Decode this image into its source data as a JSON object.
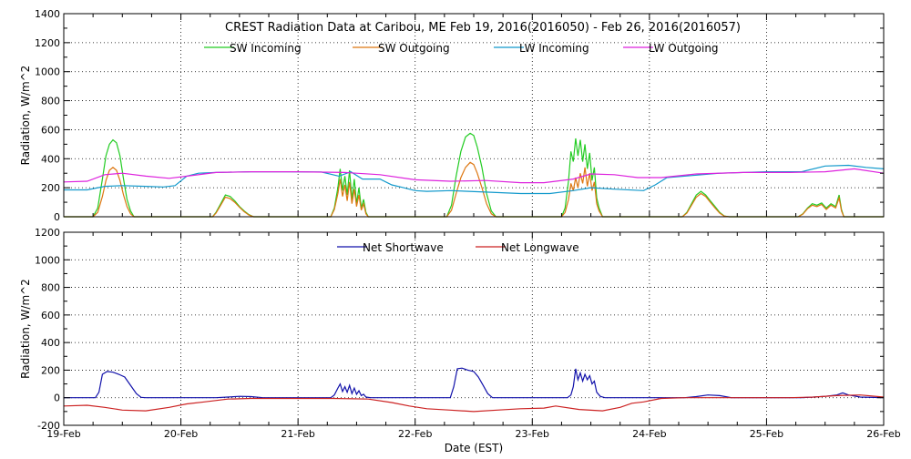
{
  "chart_data": [
    {
      "type": "line",
      "title": "CREST Radiation Data at Caribou, ME   Feb 19, 2016(2016050) - Feb 26, 2016(2016057)",
      "ylabel": "Radiation, W/m^2",
      "xlabel": "",
      "ylim": [
        0,
        1400
      ],
      "yticks": [
        0,
        200,
        400,
        600,
        800,
        1000,
        1200,
        1400
      ],
      "xlim": [
        "19-Feb",
        "26-Feb"
      ],
      "grid": true,
      "legend_placement": "top",
      "series": [
        {
          "name": "SW Incoming",
          "color": "#22cc22",
          "x": [
            0.0,
            0.25,
            0.29,
            0.33,
            0.36,
            0.39,
            0.42,
            0.45,
            0.48,
            0.51,
            0.54,
            0.57,
            0.6,
            0.63,
            0.66,
            0.7,
            1.0,
            1.27,
            1.3,
            1.34,
            1.38,
            1.42,
            1.46,
            1.5,
            1.54,
            1.58,
            1.62,
            1.66,
            1.7,
            2.0,
            2.28,
            2.31,
            2.34,
            2.36,
            2.38,
            2.4,
            2.42,
            2.44,
            2.46,
            2.48,
            2.5,
            2.52,
            2.54,
            2.56,
            2.58,
            2.6,
            2.62,
            2.64,
            2.66,
            2.7,
            3.0,
            3.27,
            3.31,
            3.35,
            3.39,
            3.43,
            3.47,
            3.5,
            3.53,
            3.57,
            3.61,
            3.65,
            3.69,
            3.73,
            3.76,
            4.0,
            4.25,
            4.28,
            4.31,
            4.33,
            4.35,
            4.37,
            4.39,
            4.41,
            4.43,
            4.45,
            4.47,
            4.49,
            4.51,
            4.53,
            4.55,
            4.57,
            4.6,
            4.63,
            4.66,
            4.7,
            5.0,
            5.28,
            5.32,
            5.36,
            5.4,
            5.44,
            5.48,
            5.52,
            5.56,
            5.6,
            5.64,
            5.68,
            5.72,
            5.76,
            6.0,
            6.27,
            6.31,
            6.35,
            6.39,
            6.43,
            6.47,
            6.51,
            6.55,
            6.59,
            6.62,
            6.64,
            6.66,
            6.7,
            7.0
          ],
          "y": [
            0,
            0,
            60,
            260,
            420,
            500,
            530,
            510,
            420,
            260,
            120,
            40,
            0,
            0,
            0,
            0,
            0,
            0,
            30,
            90,
            150,
            140,
            110,
            70,
            40,
            15,
            0,
            0,
            0,
            0,
            0,
            60,
            200,
            330,
            180,
            280,
            150,
            320,
            120,
            260,
            90,
            200,
            60,
            120,
            30,
            0,
            0,
            0,
            0,
            0,
            0,
            0,
            80,
            280,
            450,
            550,
            575,
            560,
            480,
            340,
            160,
            40,
            0,
            0,
            0,
            0,
            0,
            60,
            250,
            450,
            380,
            540,
            420,
            530,
            380,
            500,
            330,
            440,
            250,
            340,
            130,
            60,
            0,
            0,
            0,
            0,
            0,
            0,
            30,
            90,
            150,
            175,
            150,
            110,
            70,
            30,
            5,
            0,
            0,
            0,
            0,
            0,
            20,
            60,
            90,
            80,
            95,
            60,
            90,
            70,
            150,
            50,
            0,
            0,
            0
          ]
        },
        {
          "name": "SW Outgoing",
          "color": "#dd7711",
          "x": [
            0.0,
            0.25,
            0.29,
            0.33,
            0.36,
            0.39,
            0.42,
            0.45,
            0.48,
            0.51,
            0.54,
            0.57,
            0.6,
            0.63,
            0.66,
            0.7,
            1.0,
            1.27,
            1.3,
            1.34,
            1.38,
            1.42,
            1.46,
            1.5,
            1.54,
            1.58,
            1.62,
            1.66,
            1.7,
            2.0,
            2.28,
            2.31,
            2.34,
            2.36,
            2.38,
            2.4,
            2.42,
            2.44,
            2.46,
            2.48,
            2.5,
            2.52,
            2.54,
            2.56,
            2.58,
            2.6,
            2.62,
            2.64,
            2.66,
            2.7,
            3.0,
            3.27,
            3.31,
            3.35,
            3.39,
            3.43,
            3.47,
            3.5,
            3.53,
            3.57,
            3.61,
            3.65,
            3.69,
            3.73,
            3.76,
            4.0,
            4.25,
            4.28,
            4.31,
            4.33,
            4.35,
            4.37,
            4.39,
            4.41,
            4.43,
            4.45,
            4.47,
            4.49,
            4.51,
            4.53,
            4.55,
            4.57,
            4.6,
            4.63,
            4.66,
            4.7,
            5.0,
            5.28,
            5.32,
            5.36,
            5.4,
            5.44,
            5.48,
            5.52,
            5.56,
            5.6,
            5.64,
            5.68,
            5.72,
            5.76,
            6.0,
            6.27,
            6.31,
            6.35,
            6.39,
            6.43,
            6.47,
            6.51,
            6.55,
            6.59,
            6.62,
            6.64,
            6.66,
            6.7,
            7.0
          ],
          "y": [
            0,
            0,
            30,
            140,
            250,
            320,
            340,
            320,
            250,
            150,
            70,
            20,
            0,
            0,
            0,
            0,
            0,
            0,
            25,
            80,
            135,
            125,
            100,
            65,
            35,
            12,
            0,
            0,
            0,
            0,
            0,
            50,
            160,
            260,
            140,
            220,
            110,
            240,
            90,
            190,
            70,
            150,
            45,
            90,
            20,
            0,
            0,
            0,
            0,
            0,
            0,
            0,
            45,
            160,
            270,
            340,
            375,
            360,
            300,
            200,
            90,
            20,
            0,
            0,
            0,
            0,
            0,
            30,
            120,
            230,
            180,
            270,
            200,
            300,
            230,
            340,
            210,
            300,
            180,
            240,
            90,
            40,
            0,
            0,
            0,
            0,
            0,
            0,
            25,
            80,
            135,
            160,
            140,
            100,
            60,
            25,
            4,
            0,
            0,
            0,
            0,
            0,
            18,
            55,
            80,
            70,
            85,
            50,
            80,
            60,
            130,
            40,
            0,
            0,
            0
          ]
        },
        {
          "name": "LW Incoming",
          "color": "#1199cc",
          "x": [
            0,
            0.2,
            0.35,
            0.5,
            0.7,
            0.85,
            0.95,
            1.05,
            1.15,
            1.3,
            1.6,
            1.9,
            2.2,
            2.35,
            2.45,
            2.55,
            2.7,
            2.8,
            2.9,
            3.0,
            3.1,
            3.3,
            3.6,
            3.9,
            4.15,
            4.35,
            4.5,
            4.7,
            4.95,
            5.05,
            5.15,
            5.3,
            5.6,
            6.0,
            6.3,
            6.5,
            6.7,
            6.85,
            7.0
          ],
          "y": [
            185,
            185,
            210,
            215,
            210,
            205,
            215,
            280,
            300,
            305,
            310,
            310,
            308,
            280,
            310,
            260,
            260,
            220,
            200,
            180,
            175,
            180,
            170,
            160,
            160,
            180,
            200,
            190,
            180,
            220,
            270,
            280,
            300,
            310,
            310,
            350,
            355,
            340,
            330
          ]
        },
        {
          "name": "LW Outgoing",
          "color": "#dd22dd",
          "x": [
            0,
            0.2,
            0.35,
            0.5,
            0.7,
            0.9,
            1.1,
            1.3,
            1.6,
            2.0,
            2.4,
            2.7,
            3.0,
            3.3,
            3.6,
            3.9,
            4.1,
            4.35,
            4.5,
            4.7,
            4.9,
            5.1,
            5.4,
            5.8,
            6.2,
            6.5,
            6.75,
            7.0
          ],
          "y": [
            240,
            245,
            290,
            300,
            280,
            265,
            285,
            305,
            310,
            310,
            305,
            290,
            255,
            245,
            250,
            235,
            235,
            260,
            295,
            290,
            270,
            270,
            295,
            305,
            305,
            310,
            330,
            300
          ]
        }
      ]
    },
    {
      "type": "line",
      "title": "",
      "ylabel": "Radiation, W/m^2",
      "xlabel": "Date (EST)",
      "ylim": [
        -200,
        1200
      ],
      "yticks": [
        -200,
        0,
        200,
        400,
        600,
        800,
        1000,
        1200
      ],
      "categories": [
        "19-Feb",
        "20-Feb",
        "21-Feb",
        "22-Feb",
        "23-Feb",
        "24-Feb",
        "25-Feb",
        "26-Feb"
      ],
      "xlim": [
        "19-Feb",
        "26-Feb"
      ],
      "grid": true,
      "legend_placement": "top",
      "series": [
        {
          "name": "Net Shortwave",
          "color": "#1111aa",
          "x": [
            0.0,
            0.27,
            0.3,
            0.33,
            0.37,
            0.42,
            0.47,
            0.52,
            0.57,
            0.62,
            0.66,
            0.7,
            1.0,
            1.3,
            1.4,
            1.5,
            1.6,
            1.7,
            2.0,
            2.28,
            2.31,
            2.34,
            2.36,
            2.38,
            2.4,
            2.42,
            2.44,
            2.46,
            2.48,
            2.5,
            2.52,
            2.54,
            2.56,
            2.58,
            2.62,
            3.0,
            3.3,
            3.33,
            3.36,
            3.4,
            3.45,
            3.5,
            3.54,
            3.58,
            3.62,
            3.66,
            4.0,
            4.3,
            4.33,
            4.35,
            4.37,
            4.39,
            4.41,
            4.43,
            4.45,
            4.47,
            4.49,
            4.51,
            4.53,
            4.55,
            4.58,
            4.62,
            4.66,
            5.0,
            5.3,
            5.4,
            5.5,
            5.6,
            5.7,
            6.0,
            6.3,
            6.4,
            6.5,
            6.6,
            6.65,
            6.7,
            6.8,
            7.0
          ],
          "y": [
            0,
            0,
            40,
            170,
            190,
            185,
            170,
            150,
            90,
            30,
            3,
            0,
            0,
            0,
            5,
            10,
            8,
            0,
            0,
            0,
            20,
            70,
            100,
            45,
            80,
            40,
            90,
            30,
            70,
            25,
            50,
            15,
            25,
            5,
            0,
            0,
            0,
            80,
            210,
            215,
            200,
            190,
            150,
            90,
            30,
            0,
            0,
            0,
            20,
            80,
            210,
            130,
            180,
            120,
            170,
            130,
            160,
            100,
            120,
            40,
            10,
            0,
            0,
            0,
            0,
            8,
            20,
            15,
            0,
            0,
            0,
            5,
            10,
            20,
            35,
            20,
            5,
            0
          ]
        },
        {
          "name": "Net Longwave",
          "color": "#cc2222",
          "x": [
            0.0,
            0.2,
            0.35,
            0.5,
            0.7,
            0.9,
            1.05,
            1.2,
            1.4,
            1.6,
            1.8,
            2.0,
            2.3,
            2.6,
            2.8,
            2.95,
            3.1,
            3.3,
            3.5,
            3.7,
            3.9,
            4.1,
            4.2,
            4.4,
            4.6,
            4.75,
            4.85,
            4.95,
            5.1,
            5.3,
            5.6,
            5.9,
            6.2,
            6.4,
            6.6,
            6.8,
            7.0
          ],
          "y": [
            -60,
            -55,
            -70,
            -90,
            -95,
            -70,
            -45,
            -30,
            -10,
            -5,
            -5,
            -5,
            -5,
            -10,
            -35,
            -60,
            -80,
            -90,
            -100,
            -90,
            -80,
            -75,
            -60,
            -85,
            -95,
            -70,
            -40,
            -30,
            -5,
            0,
            0,
            0,
            0,
            5,
            15,
            20,
            5
          ]
        }
      ]
    }
  ]
}
